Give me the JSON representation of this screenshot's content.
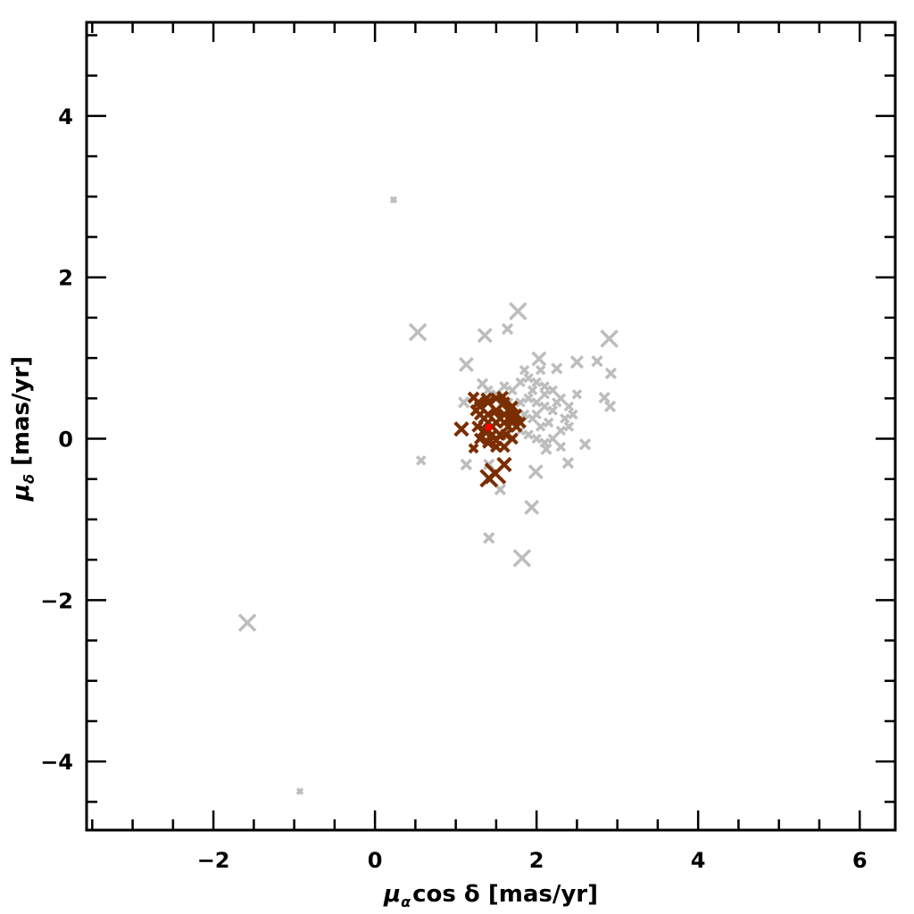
{
  "chart_data": {
    "type": "scatter",
    "title": "",
    "xlabel": "μαcos δ [mas/yr]",
    "xlabel_parts": {
      "mu": "μ",
      "sub": "α",
      "rest": "cos δ [mas/yr]"
    },
    "ylabel": "μδ [mas/yr]",
    "ylabel_parts": {
      "mu": "μ",
      "sub": "δ",
      "rest": " [mas/yr]"
    },
    "xlim": [
      -3.57,
      6.44
    ],
    "ylim": [
      -4.85,
      5.16
    ],
    "xticks_major": [
      -2,
      0,
      2,
      4,
      6
    ],
    "xtick_labels": [
      "−2",
      "0",
      "2",
      "4",
      "6"
    ],
    "yticks_major": [
      -4,
      -2,
      0,
      2,
      4
    ],
    "ytick_labels": [
      "−4",
      "−2",
      "0",
      "2",
      "4"
    ],
    "minor_tick_step": 0.5,
    "grid": false,
    "marker": "cross",
    "series": [
      {
        "color": "#bdbdbd",
        "points": [
          [
            0.23,
            2.96,
            0.03
          ],
          [
            0.53,
            1.32,
            0.1
          ],
          [
            0.57,
            -0.27,
            0.05
          ],
          [
            -1.58,
            -2.28,
            0.1
          ],
          [
            -0.93,
            -4.37,
            0.03
          ],
          [
            1.77,
            1.58,
            0.1
          ],
          [
            2.9,
            1.24,
            0.1
          ],
          [
            1.41,
            -1.23,
            0.06
          ],
          [
            1.82,
            -1.48,
            0.1
          ],
          [
            1.94,
            -0.85,
            0.08
          ],
          [
            1.13,
            0.92,
            0.08
          ],
          [
            1.36,
            1.28,
            0.08
          ],
          [
            1.64,
            1.36,
            0.06
          ],
          [
            2.03,
            0.99,
            0.08
          ],
          [
            2.5,
            0.95,
            0.07
          ],
          [
            2.75,
            0.96,
            0.06
          ],
          [
            2.92,
            0.81,
            0.06
          ],
          [
            2.84,
            0.51,
            0.06
          ],
          [
            2.91,
            0.4,
            0.06
          ],
          [
            2.25,
            0.87,
            0.06
          ],
          [
            2.39,
            -0.3,
            0.06
          ],
          [
            2.12,
            -0.13,
            0.06
          ],
          [
            1.99,
            -0.41,
            0.08
          ],
          [
            2.6,
            -0.07,
            0.06
          ],
          [
            1.41,
            -0.32,
            0.06
          ],
          [
            1.13,
            -0.32,
            0.06
          ],
          [
            1.55,
            -0.63,
            0.06
          ],
          [
            1.1,
            0.45,
            0.06
          ],
          [
            1.33,
            0.68,
            0.06
          ],
          [
            1.7,
            0.6,
            0.05
          ],
          [
            1.8,
            0.7,
            0.05
          ],
          [
            1.9,
            0.75,
            0.05
          ],
          [
            2.0,
            0.7,
            0.05
          ],
          [
            2.1,
            0.65,
            0.05
          ],
          [
            2.2,
            0.6,
            0.05
          ],
          [
            2.3,
            0.5,
            0.05
          ],
          [
            2.4,
            0.4,
            0.05
          ],
          [
            2.35,
            0.25,
            0.05
          ],
          [
            2.3,
            0.1,
            0.05
          ],
          [
            2.2,
            0.0,
            0.05
          ],
          [
            2.1,
            -0.05,
            0.05
          ],
          [
            2.0,
            0.0,
            0.05
          ],
          [
            1.9,
            0.05,
            0.05
          ],
          [
            1.8,
            0.1,
            0.05
          ],
          [
            1.75,
            0.3,
            0.05
          ],
          [
            1.8,
            0.45,
            0.05
          ],
          [
            1.9,
            0.5,
            0.05
          ],
          [
            2.0,
            0.45,
            0.05
          ],
          [
            2.1,
            0.4,
            0.05
          ],
          [
            2.2,
            0.35,
            0.05
          ],
          [
            2.15,
            0.2,
            0.05
          ],
          [
            2.05,
            0.15,
            0.05
          ],
          [
            1.95,
            0.25,
            0.05
          ],
          [
            1.85,
            0.3,
            0.05
          ],
          [
            2.0,
            0.3,
            0.05
          ],
          [
            2.1,
            0.55,
            0.05
          ],
          [
            1.95,
            0.6,
            0.05
          ],
          [
            2.25,
            0.45,
            0.05
          ],
          [
            2.4,
            0.15,
            0.05
          ],
          [
            2.45,
            0.3,
            0.05
          ],
          [
            1.7,
            0.2,
            0.05
          ],
          [
            1.65,
            0.45,
            0.05
          ],
          [
            1.6,
            0.65,
            0.05
          ],
          [
            2.05,
            0.85,
            0.05
          ],
          [
            2.5,
            0.55,
            0.05
          ],
          [
            2.3,
            -0.1,
            0.05
          ],
          [
            1.85,
            0.85,
            0.05
          ],
          [
            1.5,
            0.55,
            0.05
          ],
          [
            1.4,
            0.6,
            0.05
          ]
        ]
      },
      {
        "color": "#7a2e00",
        "points": [
          [
            1.07,
            0.12,
            0.08
          ],
          [
            1.22,
            0.51,
            0.06
          ],
          [
            1.22,
            -0.12,
            0.05
          ],
          [
            1.49,
            -0.43,
            0.12
          ],
          [
            1.41,
            -0.49,
            0.1
          ],
          [
            1.6,
            -0.32,
            0.08
          ],
          [
            1.3,
            0.4,
            0.06
          ],
          [
            1.4,
            0.45,
            0.06
          ],
          [
            1.5,
            0.5,
            0.06
          ],
          [
            1.6,
            0.45,
            0.06
          ],
          [
            1.7,
            0.4,
            0.06
          ],
          [
            1.75,
            0.3,
            0.06
          ],
          [
            1.75,
            0.15,
            0.06
          ],
          [
            1.7,
            0.0,
            0.06
          ],
          [
            1.6,
            -0.1,
            0.06
          ],
          [
            1.5,
            -0.1,
            0.06
          ],
          [
            1.4,
            -0.05,
            0.06
          ],
          [
            1.3,
            0.0,
            0.06
          ],
          [
            1.27,
            0.15,
            0.06
          ],
          [
            1.3,
            0.3,
            0.06
          ],
          [
            1.4,
            0.3,
            0.06
          ],
          [
            1.5,
            0.35,
            0.06
          ],
          [
            1.6,
            0.3,
            0.06
          ],
          [
            1.65,
            0.15,
            0.06
          ],
          [
            1.55,
            0.05,
            0.06
          ],
          [
            1.45,
            0.05,
            0.06
          ],
          [
            1.35,
            0.1,
            0.06
          ],
          [
            1.4,
            0.2,
            0.06
          ],
          [
            1.5,
            0.2,
            0.06
          ],
          [
            1.6,
            0.2,
            0.06
          ],
          [
            1.45,
            0.15,
            0.06
          ],
          [
            1.55,
            0.25,
            0.06
          ],
          [
            1.35,
            0.25,
            0.06
          ],
          [
            1.65,
            0.35,
            0.06
          ],
          [
            1.7,
            0.25,
            0.06
          ],
          [
            1.5,
            -0.02,
            0.06
          ],
          [
            1.62,
            0.05,
            0.06
          ],
          [
            1.28,
            0.45,
            0.06
          ],
          [
            1.25,
            0.35,
            0.06
          ],
          [
            1.8,
            0.2,
            0.06
          ],
          [
            1.58,
            0.52,
            0.06
          ],
          [
            1.38,
            0.5,
            0.06
          ]
        ]
      },
      {
        "color": "#ff0000",
        "marker": "star",
        "points": [
          [
            1.41,
            0.14,
            0.03
          ]
        ]
      }
    ]
  }
}
